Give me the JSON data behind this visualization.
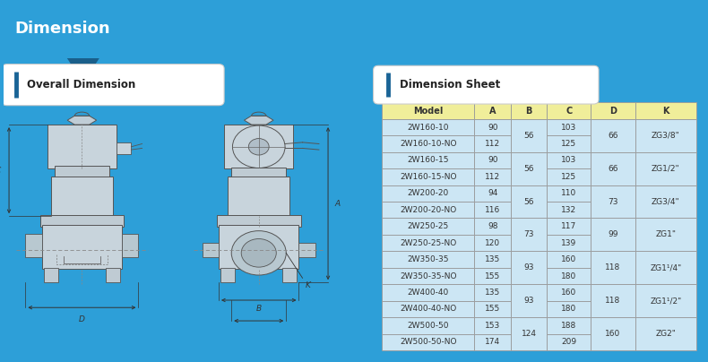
{
  "title": "Dimension",
  "title_bg_left": "#1e7ab8",
  "title_bg_right": "#1a6496",
  "title_text_color": "#ffffff",
  "left_section_title": "Overall Dimension",
  "right_section_title": "Dimension Sheet",
  "section_title_color": "#1a6496",
  "main_bg": "#2d9fd8",
  "left_bg": "#d0dde6",
  "right_bg": "#4aadd6",
  "table_header_bg": "#f0ee9a",
  "table_row_bg": "#cce6f4",
  "table_border_color": "#999999",
  "table_headers": [
    "Model",
    "A",
    "B",
    "C",
    "D",
    "K"
  ],
  "table_data": [
    [
      "2W160-10",
      "90",
      "56",
      "103",
      "66",
      "ZG3/8\""
    ],
    [
      "2W160-10-NO",
      "112",
      "56",
      "125",
      "66",
      "ZG3/8\""
    ],
    [
      "2W160-15",
      "90",
      "56",
      "103",
      "66",
      "ZG1/2\""
    ],
    [
      "2W160-15-NO",
      "112",
      "56",
      "125",
      "66",
      "ZG1/2\""
    ],
    [
      "2W200-20",
      "94",
      "56",
      "110",
      "73",
      "ZG3/4\""
    ],
    [
      "2W200-20-NO",
      "116",
      "56",
      "132",
      "73",
      "ZG3/4\""
    ],
    [
      "2W250-25",
      "98",
      "73",
      "117",
      "99",
      "ZG1\""
    ],
    [
      "2W250-25-NO",
      "120",
      "73",
      "139",
      "99",
      "ZG1\""
    ],
    [
      "2W350-35",
      "135",
      "93",
      "160",
      "118",
      "ZG1¹/4\""
    ],
    [
      "2W350-35-NO",
      "155",
      "93",
      "180",
      "118",
      "ZG1¹/4\""
    ],
    [
      "2W400-40",
      "135",
      "93",
      "160",
      "118",
      "ZG1¹/2\""
    ],
    [
      "2W400-40-NO",
      "155",
      "93",
      "180",
      "118",
      "ZG1¹/2\""
    ],
    [
      "2W500-50",
      "153",
      "124",
      "188",
      "160",
      "ZG2\""
    ],
    [
      "2W500-50-NO",
      "174",
      "124",
      "209",
      "160",
      "ZG2\""
    ]
  ]
}
